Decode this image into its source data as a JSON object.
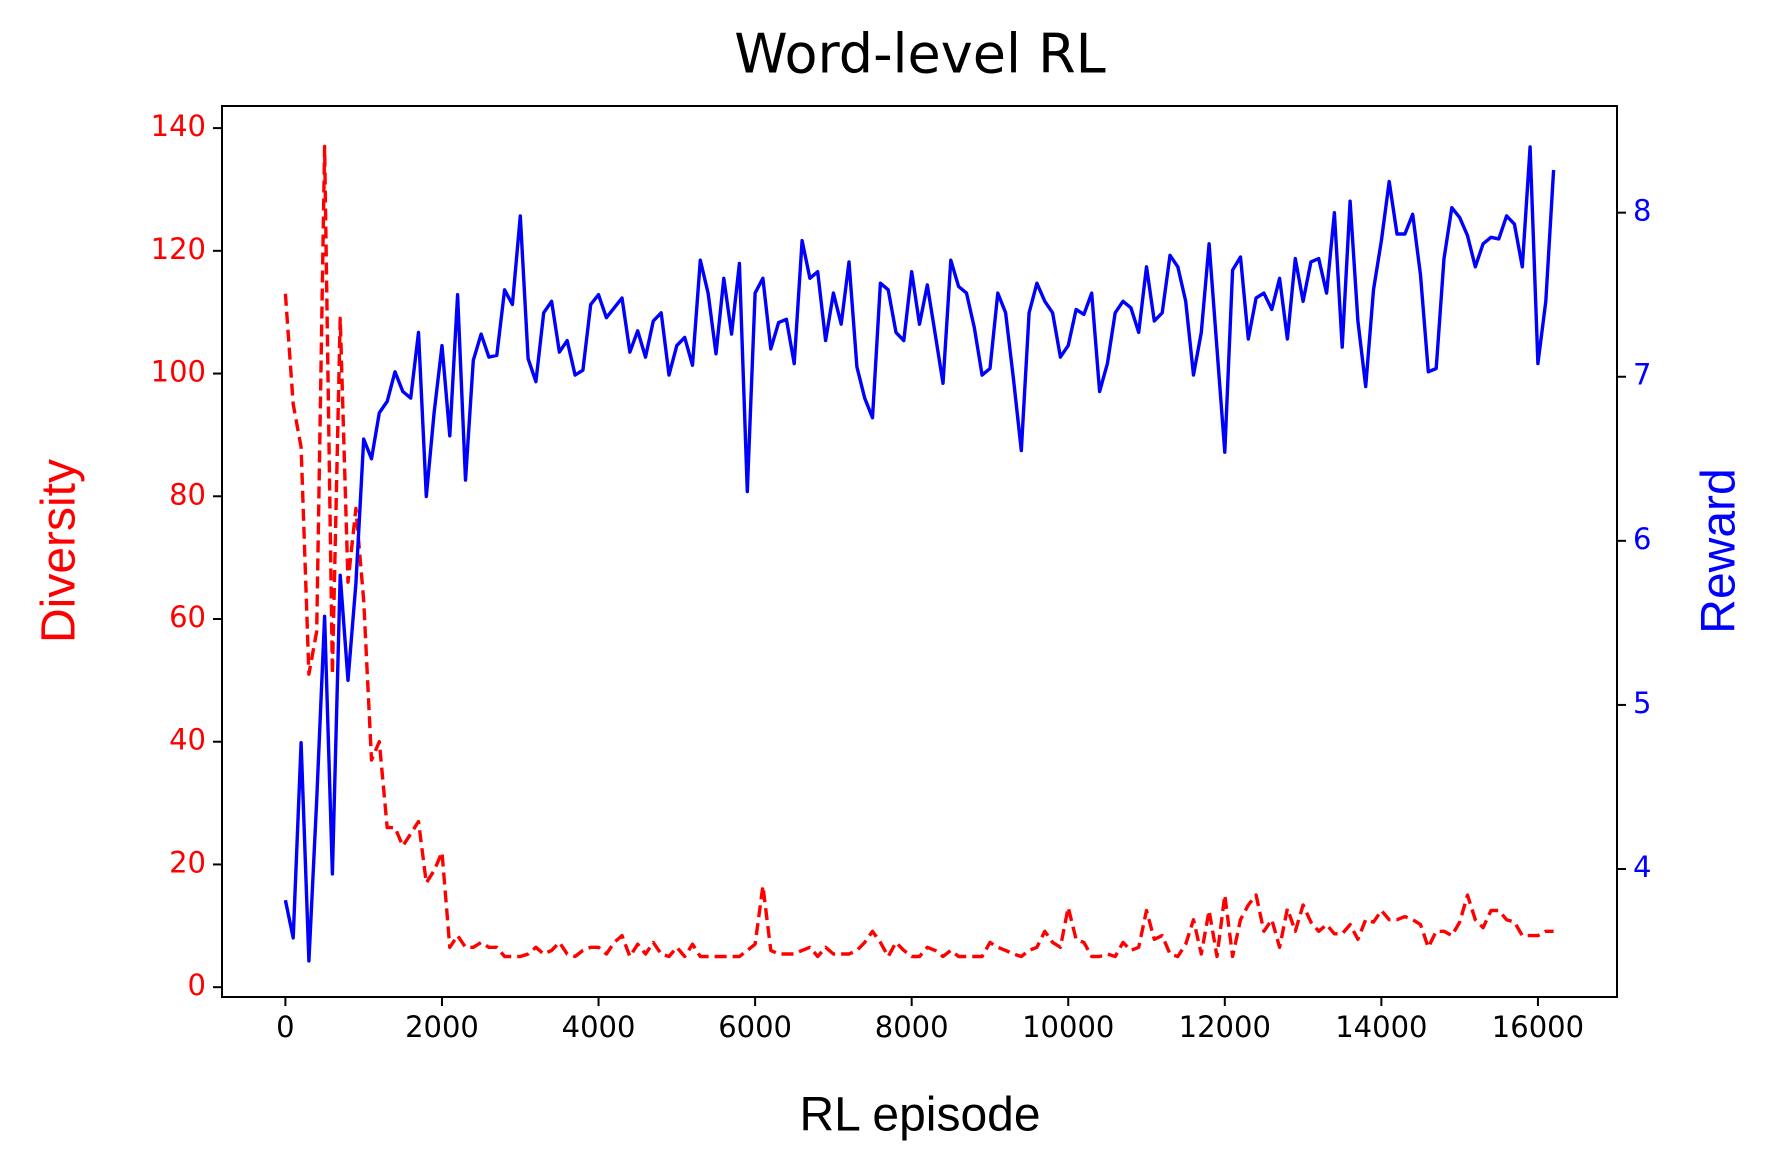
{
  "chart_data": {
    "type": "line",
    "title": "Word-level RL",
    "xlabel": "RL episode",
    "ylabel": "Diversity",
    "y2label": "Reward",
    "x": [
      0,
      100,
      200,
      300,
      400,
      500,
      600,
      700,
      800,
      900,
      1000,
      1100,
      1200,
      1300,
      1400,
      1500,
      1600,
      1700,
      1800,
      1900,
      2000,
      2100,
      2200,
      2300,
      2400,
      2500,
      2600,
      2700,
      2800,
      2900,
      3000,
      3100,
      3200,
      3300,
      3400,
      3500,
      3600,
      3700,
      3800,
      3900,
      4000,
      4100,
      4200,
      4300,
      4400,
      4500,
      4600,
      4700,
      4800,
      4900,
      5000,
      5100,
      5200,
      5300,
      5400,
      5500,
      5600,
      5700,
      5800,
      5900,
      6000,
      6100,
      6200,
      6300,
      6400,
      6500,
      6600,
      6700,
      6800,
      6900,
      7000,
      7100,
      7200,
      7300,
      7400,
      7500,
      7600,
      7700,
      7800,
      7900,
      8000,
      8100,
      8200,
      8300,
      8400,
      8500,
      8600,
      8700,
      8800,
      8900,
      9000,
      9100,
      9200,
      9300,
      9400,
      9500,
      9600,
      9700,
      9800,
      9900,
      10000,
      10100,
      10200,
      10300,
      10400,
      10500,
      10600,
      10700,
      10800,
      10900,
      11000,
      11100,
      11200,
      11300,
      11400,
      11500,
      11600,
      11700,
      11800,
      11900,
      12000,
      12100,
      12200,
      12300,
      12400,
      12500,
      12600,
      12700,
      12800,
      12900,
      13000,
      13100,
      13200,
      13300,
      13400,
      13500,
      13600,
      13700,
      13800,
      13900,
      14000,
      14100,
      14200,
      14300,
      14400,
      14500,
      14600,
      14700,
      14800,
      14900,
      15000,
      15100,
      15200,
      15300,
      15400,
      15500,
      15600,
      15700,
      15800,
      15900,
      16000,
      16100,
      16200
    ],
    "series": [
      {
        "name": "Diversity",
        "color": "#ff0000",
        "axis": "y",
        "dashed": true,
        "values": [
          113,
          95,
          88,
          51,
          58,
          137,
          51,
          109,
          66,
          78,
          63,
          37,
          40,
          26,
          26,
          23,
          25,
          27,
          17,
          19,
          22,
          6.5,
          8.4,
          6.5,
          6.5,
          7.3,
          6.5,
          6.5,
          5,
          5,
          5,
          5.4,
          6.5,
          5.4,
          6,
          7.3,
          5.4,
          5,
          6,
          6.5,
          6.5,
          5.4,
          7.3,
          8.4,
          5,
          7,
          5.4,
          7.3,
          5.4,
          5,
          6.5,
          5,
          7,
          5,
          5,
          5,
          5,
          5,
          5,
          6,
          7,
          16.5,
          6,
          5.4,
          5.4,
          5.4,
          6,
          6.5,
          5,
          6.5,
          5.4,
          5.4,
          5.4,
          6,
          7.3,
          9.1,
          7.3,
          5,
          7.3,
          6,
          5,
          5,
          6.5,
          6,
          5,
          6,
          5,
          5,
          5,
          5,
          7.3,
          6.5,
          6,
          5.4,
          5,
          6,
          6.5,
          9.1,
          7.3,
          6.5,
          13,
          7.8,
          7.3,
          5,
          5,
          5.4,
          5,
          7.3,
          6,
          6.5,
          12.5,
          7.8,
          8.4,
          5.4,
          5,
          7,
          11,
          5.4,
          12.5,
          5,
          15,
          5,
          11,
          13.4,
          15,
          9.1,
          11,
          6.5,
          12.8,
          9.1,
          13.4,
          10.6,
          9.1,
          10.2,
          8.7,
          8.7,
          10.2,
          7.8,
          11,
          10.6,
          12.5,
          11,
          11,
          11.5,
          11,
          10.2,
          6.5,
          9.1,
          9.1,
          8.4,
          10.6,
          15,
          11,
          9.7,
          12.5,
          12.5,
          11,
          10.6,
          8.4,
          8.4,
          8.4,
          9.1,
          9.1
        ]
      },
      {
        "name": "Reward",
        "color": "#0000ff",
        "axis": "y2",
        "dashed": false,
        "values": [
          3.81,
          3.58,
          4.77,
          3.44,
          4.42,
          5.54,
          3.97,
          5.79,
          5.15,
          5.74,
          6.62,
          6.5,
          6.78,
          6.85,
          7.03,
          6.91,
          6.87,
          7.27,
          6.27,
          6.78,
          7.19,
          6.64,
          7.5,
          6.37,
          7.1,
          7.26,
          7.12,
          7.13,
          7.53,
          7.44,
          7.98,
          7.11,
          6.97,
          7.39,
          7.46,
          7.15,
          7.22,
          7.01,
          7.04,
          7.44,
          7.5,
          7.36,
          7.42,
          7.48,
          7.15,
          7.28,
          7.12,
          7.34,
          7.39,
          7.01,
          7.19,
          7.24,
          7.07,
          7.71,
          7.51,
          7.14,
          7.6,
          7.26,
          7.69,
          6.3,
          7.51,
          7.6,
          7.17,
          7.33,
          7.35,
          7.08,
          7.83,
          7.6,
          7.64,
          7.22,
          7.51,
          7.32,
          7.7,
          7.06,
          6.87,
          6.75,
          7.57,
          7.53,
          7.27,
          7.22,
          7.64,
          7.32,
          7.56,
          7.26,
          6.96,
          7.71,
          7.55,
          7.51,
          7.3,
          7.01,
          7.05,
          7.51,
          7.39,
          6.99,
          6.55,
          7.39,
          7.57,
          7.46,
          7.39,
          7.12,
          7.19,
          7.41,
          7.38,
          7.51,
          6.91,
          7.08,
          7.39,
          7.46,
          7.42,
          7.27,
          7.67,
          7.34,
          7.39,
          7.74,
          7.67,
          7.46,
          7.01,
          7.27,
          7.81,
          7.17,
          6.54,
          7.65,
          7.73,
          7.23,
          7.48,
          7.51,
          7.41,
          7.6,
          7.23,
          7.72,
          7.46,
          7.7,
          7.72,
          7.51,
          8.0,
          7.18,
          8.07,
          7.34,
          6.94,
          7.53,
          7.83,
          8.19,
          7.87,
          7.87,
          7.99,
          7.62,
          7.03,
          7.05,
          7.72,
          8.03,
          7.97,
          7.86,
          7.67,
          7.81,
          7.85,
          7.84,
          7.98,
          7.93,
          7.67,
          8.4,
          7.08,
          7.46,
          8.26
        ]
      }
    ],
    "xlim": [
      -810,
      17010
    ],
    "xticks": [
      0,
      2000,
      4000,
      6000,
      8000,
      10000,
      12000,
      14000,
      16000
    ],
    "ylim": [
      -1.6,
      143.6
    ],
    "yticks": [
      0,
      20,
      40,
      60,
      80,
      100,
      120,
      140
    ],
    "y2lim": [
      3.22,
      8.65
    ],
    "y2ticks": [
      4,
      5,
      6,
      7,
      8
    ]
  }
}
